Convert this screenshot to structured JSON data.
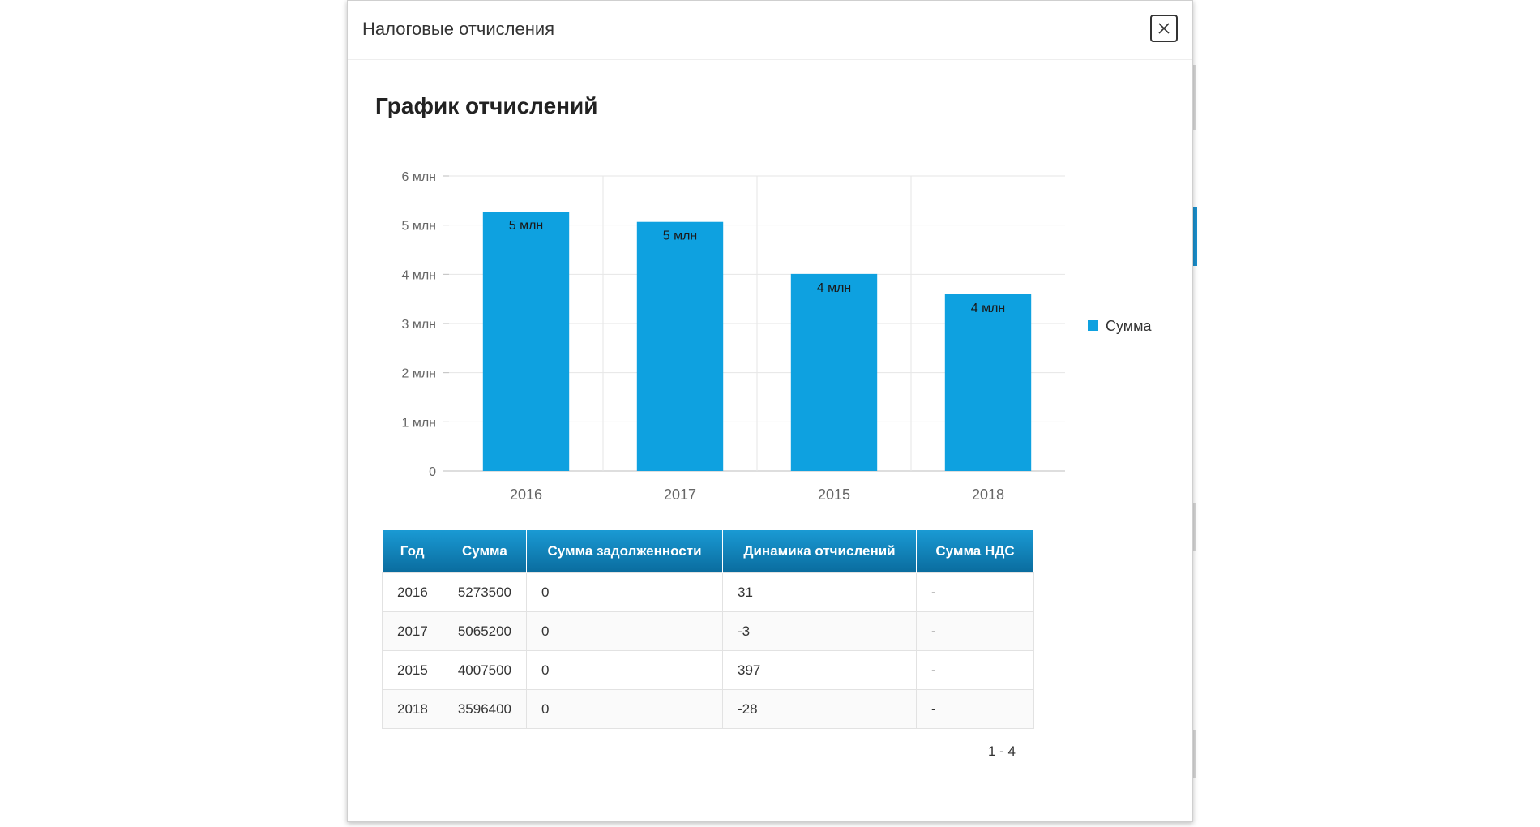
{
  "modal": {
    "title": "Налоговые отчисления",
    "close_icon": "close-icon"
  },
  "section": {
    "title": "График отчислений"
  },
  "chart_data": {
    "type": "bar",
    "categories": [
      "2016",
      "2017",
      "2015",
      "2018"
    ],
    "series": [
      {
        "name": "Сумма",
        "color": "#0ea1e0",
        "values": [
          5273500,
          5065200,
          4007500,
          3596400
        ],
        "data_labels": [
          "5 млн",
          "5 млн",
          "4 млн",
          "4 млн"
        ]
      }
    ],
    "y_ticks": [
      0,
      1000000,
      2000000,
      3000000,
      4000000,
      5000000,
      6000000
    ],
    "y_tick_labels": [
      "0",
      "1 млн",
      "2 млн",
      "3 млн",
      "4 млн",
      "5 млн",
      "6 млн"
    ],
    "ylim": [
      0,
      6000000
    ],
    "grid": true,
    "legend_position": "right"
  },
  "table": {
    "headers": [
      "Год",
      "Сумма",
      "Сумма задолженности",
      "Динамика отчислений",
      "Сумма НДС"
    ],
    "rows": [
      [
        "2016",
        "5273500",
        "0",
        "31",
        "-"
      ],
      [
        "2017",
        "5065200",
        "0",
        "-3",
        "-"
      ],
      [
        "2015",
        "4007500",
        "0",
        "397",
        "-"
      ],
      [
        "2018",
        "3596400",
        "0",
        "-28",
        "-"
      ]
    ]
  },
  "pager": {
    "text": "1 - 4"
  },
  "colors": {
    "accent": "#0ea1e0",
    "header_gradient_top": "#1a9ad4",
    "header_gradient_bottom": "#0a6c9e"
  }
}
